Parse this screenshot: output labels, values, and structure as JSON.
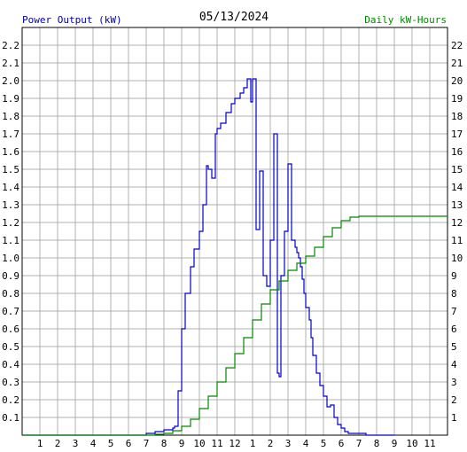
{
  "chart_data": {
    "type": "line",
    "title": "05/13/2024",
    "ylabel_left": "Power Output (kW)",
    "ylabel_right": "Daily kW-Hours",
    "colors": {
      "power": "#0000cc",
      "energy": "#008800",
      "grid": "#b0b0b0",
      "frame": "#000000"
    },
    "x_ticks": [
      "1",
      "2",
      "3",
      "4",
      "5",
      "6",
      "7",
      "8",
      "9",
      "10",
      "11",
      "12",
      "1",
      "2",
      "3",
      "4",
      "5",
      "6",
      "7",
      "8",
      "9",
      "10",
      "11"
    ],
    "x_range": [
      0,
      24
    ],
    "y_left_ticks": [
      "0.1",
      "0.2",
      "0.3",
      "0.4",
      "0.5",
      "0.6",
      "0.7",
      "0.8",
      "0.9",
      "1.0",
      "1.1",
      "1.2",
      "1.3",
      "1.4",
      "1.5",
      "1.6",
      "1.7",
      "1.8",
      "1.9",
      "2.0",
      "2.1",
      "2.2"
    ],
    "y_left_range": [
      0,
      2.3
    ],
    "y_right_ticks": [
      "1",
      "2",
      "3",
      "4",
      "5",
      "6",
      "7",
      "8",
      "9",
      "10",
      "11",
      "12",
      "13",
      "14",
      "15",
      "16",
      "17",
      "18",
      "19",
      "20",
      "21",
      "22"
    ],
    "y_right_range": [
      0,
      23
    ],
    "grid": true,
    "series": [
      {
        "name": "Power Output (kW)",
        "axis": "left",
        "x": [
          0,
          6.7,
          7.0,
          7.5,
          8.0,
          8.5,
          8.6,
          8.8,
          9.0,
          9.2,
          9.5,
          9.7,
          10.0,
          10.2,
          10.4,
          10.5,
          10.7,
          10.9,
          11.0,
          11.2,
          11.5,
          11.8,
          12.0,
          12.3,
          12.5,
          12.7,
          12.9,
          13.0,
          13.2,
          13.4,
          13.6,
          13.8,
          14.0,
          14.2,
          14.4,
          14.5,
          14.6,
          14.8,
          15.0,
          15.2,
          15.4,
          15.5,
          15.6,
          15.7,
          15.8,
          15.9,
          16.0,
          16.2,
          16.3,
          16.4,
          16.6,
          16.8,
          17.0,
          17.2,
          17.4,
          17.6,
          17.8,
          18.0,
          18.2,
          18.4,
          18.6,
          18.8,
          19.0,
          19.2,
          19.4,
          19.6,
          19.8,
          20.0,
          20.3,
          20.6,
          21.0
        ],
        "y": [
          0,
          0,
          0.01,
          0.02,
          0.03,
          0.04,
          0.05,
          0.25,
          0.6,
          0.8,
          0.95,
          1.05,
          1.15,
          1.3,
          1.52,
          1.5,
          1.45,
          1.7,
          1.73,
          1.76,
          1.82,
          1.87,
          1.9,
          1.93,
          1.96,
          2.01,
          1.88,
          2.01,
          1.16,
          1.49,
          0.9,
          0.84,
          1.1,
          1.7,
          0.35,
          0.33,
          0.9,
          1.15,
          1.53,
          1.1,
          1.06,
          1.03,
          1.0,
          0.95,
          0.88,
          0.8,
          0.72,
          0.65,
          0.55,
          0.45,
          0.35,
          0.28,
          0.22,
          0.16,
          0.17,
          0.1,
          0.06,
          0.04,
          0.02,
          0.01,
          0.01,
          0.01,
          0.01,
          0.01,
          0,
          0,
          0,
          0,
          0,
          0,
          0
        ]
      },
      {
        "name": "Daily kW-Hours",
        "axis": "right",
        "x": [
          0,
          6.7,
          7.5,
          8.0,
          8.5,
          9.0,
          9.5,
          10.0,
          10.5,
          11.0,
          11.5,
          12.0,
          12.5,
          13.0,
          13.5,
          14.0,
          14.5,
          15.0,
          15.5,
          16.0,
          16.5,
          17.0,
          17.5,
          18.0,
          18.5,
          19.0,
          20.0,
          21.0,
          22.0,
          23.0,
          24.0
        ],
        "y": [
          0,
          0,
          0.05,
          0.1,
          0.25,
          0.5,
          0.9,
          1.5,
          2.2,
          3.0,
          3.8,
          4.6,
          5.5,
          6.5,
          7.4,
          8.2,
          8.7,
          9.3,
          9.7,
          10.1,
          10.6,
          11.2,
          11.7,
          12.1,
          12.3,
          12.35,
          12.35,
          12.35,
          12.35,
          12.35,
          12.35
        ]
      }
    ]
  }
}
